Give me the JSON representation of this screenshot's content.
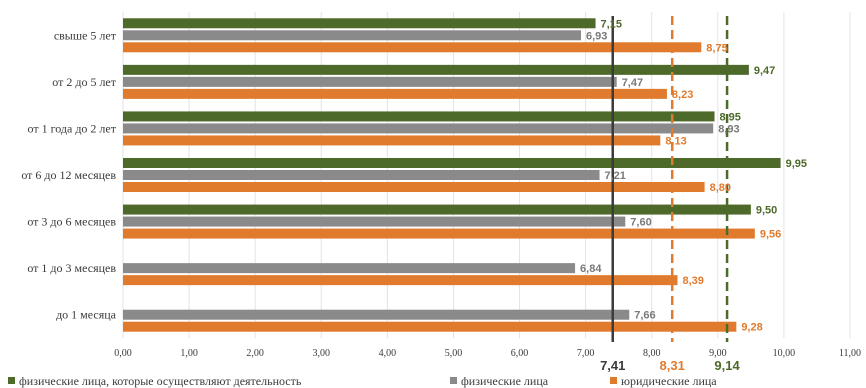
{
  "chart_data": {
    "type": "bar",
    "orientation": "horizontal",
    "categories": [
      "свыше 5 лет",
      "от 2 до 5 лет",
      "от 1 года до 2 лет",
      "от 6 до 12 месяцев",
      "от 3 до 6 месяцев",
      "от 1 до 3 месяцев",
      "до 1 месяца"
    ],
    "series": [
      {
        "name": "физические лица, которые осуществляют деятельность",
        "color": "#4e6a2a",
        "values": [
          7.15,
          9.47,
          8.95,
          9.95,
          9.5,
          null,
          null
        ]
      },
      {
        "name": "физические лица",
        "color": "#8a8a8a",
        "values": [
          6.93,
          7.47,
          8.93,
          7.21,
          7.6,
          6.84,
          7.66
        ]
      },
      {
        "name": "юридические лица",
        "color": "#e07b2e",
        "values": [
          8.75,
          8.23,
          8.13,
          8.8,
          9.56,
          8.39,
          9.28
        ]
      }
    ],
    "value_labels": [
      [
        "7,15",
        "9,47",
        "8,95",
        "9,95",
        "9,50",
        "",
        ""
      ],
      [
        "6,93",
        "7,47",
        "8,93",
        "7,21",
        "7,60",
        "6,84",
        "7,66"
      ],
      [
        "8,75",
        "8,23",
        "8,13",
        "8,80",
        "9,56",
        "8,39",
        "9,28"
      ]
    ],
    "reference_lines": [
      {
        "value": 7.41,
        "label": "7,41",
        "color": "#3b3b3b",
        "style": "solid"
      },
      {
        "value": 8.31,
        "label": "8,31",
        "color": "#e07b2e",
        "style": "dashed"
      },
      {
        "value": 9.14,
        "label": "9,14",
        "color": "#4e6a2a",
        "style": "dashed"
      }
    ],
    "x_ticks": [
      "0,00",
      "1,00",
      "2,00",
      "3,00",
      "4,00",
      "5,00",
      "6,00",
      "7,00",
      "8,00",
      "9,00",
      "10,00",
      "11,00"
    ],
    "xlim": [
      0,
      11
    ],
    "grid": "vertical",
    "legend_position": "bottom"
  }
}
